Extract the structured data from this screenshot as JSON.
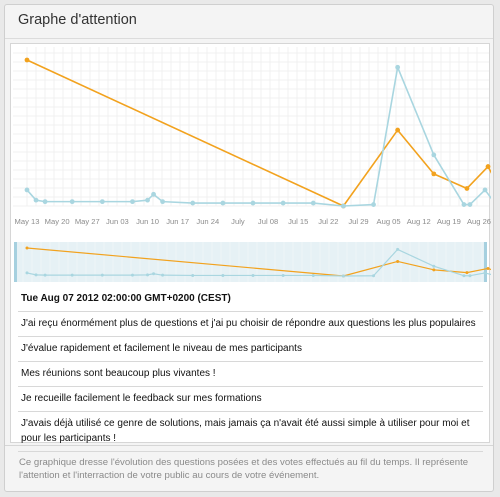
{
  "panel": {
    "title": "Graphe d'attention"
  },
  "chart_data": {
    "type": "line",
    "x_labels": [
      "May 13",
      "May 20",
      "May 27",
      "Jun 03",
      "Jun 10",
      "Jun 17",
      "Jun 24",
      "July",
      "Jul 08",
      "Jul 15",
      "Jul 22",
      "Jul 29",
      "Aug 05",
      "Aug 12",
      "Aug 19",
      "Aug 26"
    ],
    "series": [
      {
        "color": "#f2a21e",
        "points": [
          [
            0,
            1.0
          ],
          [
            10.5,
            0.0
          ],
          [
            12.3,
            0.52
          ],
          [
            13.5,
            0.22
          ],
          [
            14.6,
            0.12
          ],
          [
            15.3,
            0.27
          ],
          [
            16.0,
            0.0
          ]
        ]
      },
      {
        "color": "#a9d6e0",
        "points": [
          [
            0,
            0.11
          ],
          [
            0.3,
            0.04
          ],
          [
            0.6,
            0.03
          ],
          [
            1.5,
            0.03
          ],
          [
            2.5,
            0.03
          ],
          [
            3.5,
            0.03
          ],
          [
            4.0,
            0.04
          ],
          [
            4.2,
            0.08
          ],
          [
            4.5,
            0.03
          ],
          [
            5.5,
            0.02
          ],
          [
            6.5,
            0.02
          ],
          [
            7.5,
            0.02
          ],
          [
            8.5,
            0.02
          ],
          [
            9.5,
            0.02
          ],
          [
            10.5,
            0.0
          ],
          [
            11.5,
            0.01
          ],
          [
            12.3,
            0.95
          ],
          [
            13.5,
            0.35
          ],
          [
            14.5,
            0.01
          ],
          [
            14.7,
            0.01
          ],
          [
            15.2,
            0.11
          ],
          [
            15.6,
            0.0
          ],
          [
            16.0,
            0.0
          ]
        ]
      }
    ],
    "grid": true
  },
  "info": {
    "timestamp": "Tue Aug 07 2012 02:00:00 GMT+0200 (CEST)",
    "items": [
      "J'ai reçu énormément plus de questions et j'ai pu choisir de répondre aux questions les plus populaires",
      "J'évalue rapidement et facilement le niveau de mes participants",
      "Mes réunions sont beaucoup plus vivantes !",
      "Je recueille facilement le feedback sur mes formations",
      "J'avais déjà utilisé ce genre de solutions, mais jamais ça n'avait été aussi simple à utiliser pour moi et pour les participants !"
    ]
  },
  "footer": {
    "text": "Ce graphique dresse l'évolution des questions posées et des votes effectués au fil du temps. Il représente l'attention et l'interraction de votre public au cours de votre événement."
  }
}
